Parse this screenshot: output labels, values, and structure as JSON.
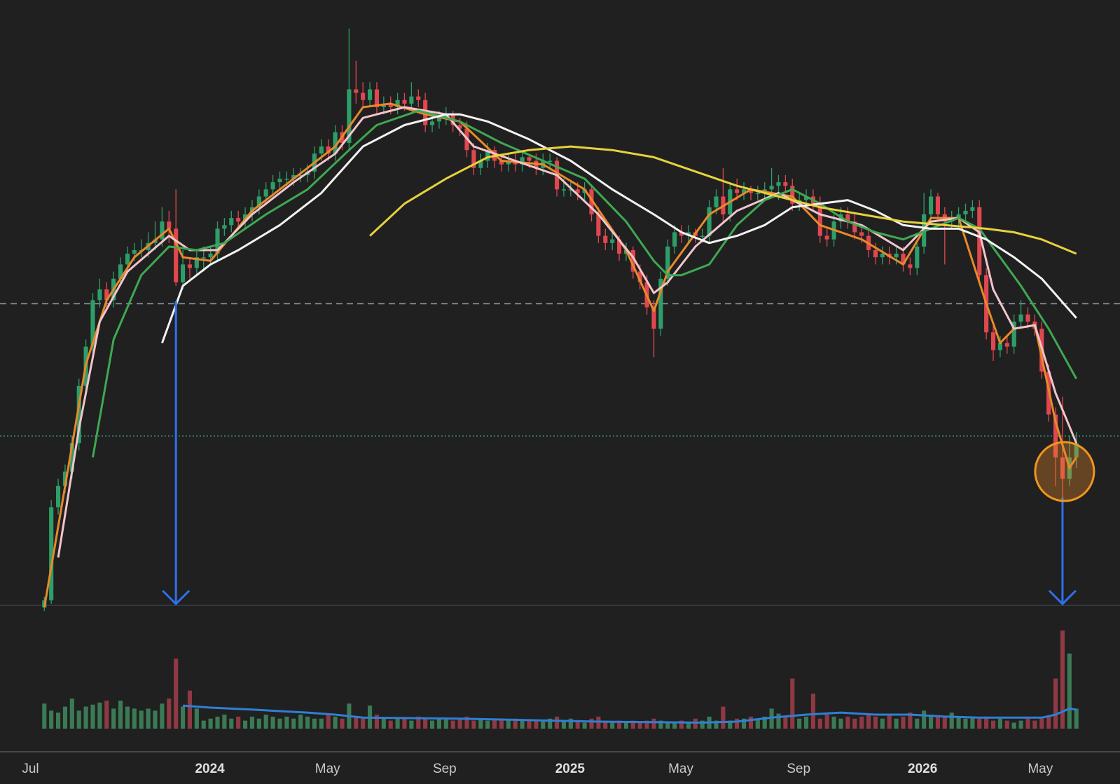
{
  "chart_data": {
    "type": "candlestick",
    "xlim": [
      -6.4,
      155.3
    ],
    "ylim": [
      10,
      180
    ],
    "vlim": [
      0,
      100
    ],
    "xticks": [
      {
        "value": -2,
        "label": "Jul"
      },
      {
        "value": 23.9,
        "label": "2024",
        "bold": true
      },
      {
        "value": 40.9,
        "label": "May"
      },
      {
        "value": 57.8,
        "label": "Sep"
      },
      {
        "value": 75.9,
        "label": "2025",
        "bold": true
      },
      {
        "value": 91.9,
        "label": "May"
      },
      {
        "value": 108.9,
        "label": "Sep"
      },
      {
        "value": 126.8,
        "label": "2026",
        "bold": true
      },
      {
        "value": 143.8,
        "label": "May"
      }
    ],
    "up_color": "#2e9e68",
    "down_color": "#e0474f",
    "vol_up_color": "#3b7a55",
    "vol_down_color": "#8e3943",
    "candles": [
      [
        10,
        13,
        9,
        12
      ],
      [
        12,
        40,
        11,
        38
      ],
      [
        38,
        46,
        36,
        44
      ],
      [
        44,
        50,
        42,
        48
      ],
      [
        48,
        58,
        46,
        56
      ],
      [
        56,
        74,
        54,
        72
      ],
      [
        72,
        85,
        70,
        83
      ],
      [
        83,
        98,
        81,
        96
      ],
      [
        96,
        102,
        94,
        99
      ],
      [
        99,
        101,
        94,
        96
      ],
      [
        96,
        104,
        94,
        102
      ],
      [
        102,
        108,
        100,
        106
      ],
      [
        106,
        111,
        104,
        109
      ],
      [
        109,
        112,
        107,
        110
      ],
      [
        110,
        113,
        108,
        110
      ],
      [
        110,
        115,
        108,
        112
      ],
      [
        112,
        118,
        110,
        113
      ],
      [
        113,
        122,
        111,
        118
      ],
      [
        118,
        121,
        112,
        116
      ],
      [
        116,
        127,
        100,
        101
      ],
      [
        101,
        110,
        99,
        106
      ],
      [
        106,
        108,
        102,
        105
      ],
      [
        105,
        110,
        103,
        108
      ],
      [
        108,
        111,
        104,
        108
      ],
      [
        108,
        111,
        106,
        109
      ],
      [
        109,
        118,
        107,
        116
      ],
      [
        116,
        119,
        114,
        117
      ],
      [
        117,
        121,
        115,
        119
      ],
      [
        119,
        121,
        116,
        118
      ],
      [
        118,
        122,
        116,
        120
      ],
      [
        120,
        124,
        118,
        122
      ],
      [
        122,
        127,
        120,
        125
      ],
      [
        125,
        129,
        123,
        127
      ],
      [
        127,
        131,
        125,
        129
      ],
      [
        129,
        132,
        127,
        130
      ],
      [
        130,
        132,
        128,
        130
      ],
      [
        130,
        133,
        128,
        131
      ],
      [
        131,
        133,
        129,
        131
      ],
      [
        131,
        134,
        129,
        132
      ],
      [
        132,
        139,
        130,
        137
      ],
      [
        137,
        141,
        135,
        139
      ],
      [
        139,
        141,
        135,
        137
      ],
      [
        137,
        145,
        135,
        143
      ],
      [
        143,
        145,
        138,
        140
      ],
      [
        140,
        172,
        138,
        155
      ],
      [
        155,
        163,
        151,
        154
      ],
      [
        154,
        157,
        150,
        152
      ],
      [
        152,
        157,
        150,
        155
      ],
      [
        155,
        157,
        148,
        150
      ],
      [
        150,
        153,
        148,
        151
      ],
      [
        151,
        153,
        148,
        150
      ],
      [
        150,
        154,
        148,
        152
      ],
      [
        152,
        154,
        149,
        151
      ],
      [
        151,
        157,
        149,
        153
      ],
      [
        153,
        155,
        150,
        152
      ],
      [
        152,
        154,
        143,
        145
      ],
      [
        145,
        148,
        143,
        146
      ],
      [
        146,
        149,
        144,
        147
      ],
      [
        147,
        150,
        145,
        148
      ],
      [
        148,
        149,
        143,
        145
      ],
      [
        145,
        147,
        142,
        144
      ],
      [
        144,
        146,
        136,
        138
      ],
      [
        138,
        140,
        131,
        133
      ],
      [
        133,
        137,
        131,
        135
      ],
      [
        135,
        140,
        133,
        138
      ],
      [
        138,
        139,
        133,
        135
      ],
      [
        135,
        137,
        132,
        134
      ],
      [
        134,
        137,
        132,
        135
      ],
      [
        135,
        137,
        132,
        134
      ],
      [
        134,
        138,
        132,
        136
      ],
      [
        136,
        137,
        133,
        135
      ],
      [
        135,
        137,
        131,
        133
      ],
      [
        133,
        137,
        131,
        135
      ],
      [
        135,
        137,
        133,
        135
      ],
      [
        135,
        136,
        125,
        127
      ],
      [
        127,
        130,
        125,
        127
      ],
      [
        127,
        129,
        125,
        127
      ],
      [
        127,
        129,
        124,
        126
      ],
      [
        126,
        129,
        124,
        127
      ],
      [
        127,
        128,
        118,
        120
      ],
      [
        120,
        122,
        112,
        114
      ],
      [
        114,
        116,
        110,
        112
      ],
      [
        112,
        115,
        110,
        113
      ],
      [
        113,
        114,
        107,
        109
      ],
      [
        109,
        112,
        107,
        110
      ],
      [
        110,
        111,
        102,
        104
      ],
      [
        104,
        106,
        99,
        101
      ],
      [
        101,
        103,
        92,
        94
      ],
      [
        94,
        96,
        80,
        88
      ],
      [
        88,
        104,
        86,
        102
      ],
      [
        102,
        113,
        100,
        111
      ],
      [
        111,
        117,
        109,
        115
      ],
      [
        115,
        117,
        112,
        114
      ],
      [
        114,
        117,
        112,
        115
      ],
      [
        115,
        116,
        112,
        114
      ],
      [
        114,
        116,
        112,
        114
      ],
      [
        114,
        124,
        112,
        122
      ],
      [
        122,
        127,
        120,
        125
      ],
      [
        125,
        133,
        118,
        120
      ],
      [
        120,
        129,
        118,
        127
      ],
      [
        127,
        130,
        124,
        126
      ],
      [
        126,
        129,
        124,
        127
      ],
      [
        127,
        128,
        124,
        126
      ],
      [
        126,
        128,
        124,
        126
      ],
      [
        126,
        129,
        124,
        127
      ],
      [
        127,
        133,
        125,
        128
      ],
      [
        128,
        131,
        124,
        129
      ],
      [
        129,
        131,
        126,
        128
      ],
      [
        128,
        130,
        121,
        123
      ],
      [
        123,
        126,
        121,
        124
      ],
      [
        124,
        127,
        122,
        125
      ],
      [
        125,
        127,
        121,
        123
      ],
      [
        123,
        125,
        112,
        114
      ],
      [
        114,
        116,
        111,
        113
      ],
      [
        113,
        120,
        111,
        118
      ],
      [
        118,
        122,
        116,
        120
      ],
      [
        120,
        122,
        116,
        118
      ],
      [
        118,
        120,
        113,
        115
      ],
      [
        115,
        117,
        112,
        114
      ],
      [
        114,
        116,
        108,
        110
      ],
      [
        110,
        112,
        106,
        108
      ],
      [
        108,
        111,
        106,
        109
      ],
      [
        109,
        111,
        106,
        108
      ],
      [
        108,
        111,
        106,
        109
      ],
      [
        109,
        111,
        104,
        106
      ],
      [
        106,
        108,
        103,
        105
      ],
      [
        105,
        113,
        103,
        111
      ],
      [
        111,
        126,
        109,
        120
      ],
      [
        120,
        127,
        118,
        125
      ],
      [
        125,
        126,
        118,
        120
      ],
      [
        120,
        122,
        106,
        118
      ],
      [
        118,
        121,
        116,
        119
      ],
      [
        119,
        122,
        117,
        120
      ],
      [
        120,
        123,
        118,
        121
      ],
      [
        121,
        124,
        119,
        122
      ],
      [
        122,
        124,
        101,
        103
      ],
      [
        103,
        105,
        85,
        87
      ],
      [
        87,
        89,
        79,
        82
      ],
      [
        82,
        86,
        80,
        84
      ],
      [
        84,
        86,
        81,
        83
      ],
      [
        83,
        92,
        81,
        90
      ],
      [
        90,
        96,
        88,
        92
      ],
      [
        92,
        94,
        88,
        90
      ],
      [
        90,
        92,
        86,
        88
      ],
      [
        88,
        90,
        74,
        76
      ],
      [
        76,
        78,
        62,
        64
      ],
      [
        64,
        66,
        44,
        52
      ],
      [
        52,
        69,
        40,
        46
      ],
      [
        46,
        58,
        44,
        52
      ],
      [
        52,
        59,
        49,
        56
      ]
    ],
    "volumes": [
      25,
      18,
      16,
      22,
      30,
      18,
      22,
      24,
      26,
      28,
      20,
      28,
      22,
      20,
      18,
      20,
      18,
      25,
      30,
      70,
      22,
      38,
      20,
      8,
      10,
      12,
      14,
      10,
      12,
      8,
      12,
      10,
      14,
      12,
      10,
      12,
      10,
      14,
      12,
      10,
      10,
      14,
      12,
      10,
      25,
      12,
      10,
      23,
      14,
      10,
      8,
      10,
      10,
      8,
      12,
      10,
      8,
      10,
      9,
      8,
      10,
      12,
      8,
      10,
      8,
      10,
      8,
      9,
      10,
      8,
      8,
      9,
      8,
      10,
      12,
      8,
      10,
      8,
      6,
      10,
      12,
      8,
      6,
      8,
      6,
      8,
      6,
      8,
      10,
      8,
      6,
      6,
      8,
      6,
      10,
      8,
      12,
      8,
      22,
      8,
      10,
      10,
      12,
      10,
      12,
      20,
      15,
      12,
      50,
      10,
      12,
      35,
      10,
      14,
      12,
      10,
      12,
      10,
      12,
      14,
      12,
      10,
      14,
      10,
      12,
      16,
      10,
      18,
      14,
      12,
      12,
      16,
      12,
      10,
      12,
      10,
      12,
      8,
      10,
      8,
      6,
      8,
      10,
      8,
      10,
      12,
      50,
      98,
      75,
      20
    ],
    "ma_lines": [
      {
        "color": "#e8892a",
        "x": [
          0,
          3,
          6,
          9,
          13,
          18,
          20,
          24,
          30,
          36,
          42,
          46,
          50,
          55,
          60,
          66,
          72,
          78,
          84,
          88,
          90,
          96,
          102,
          108,
          112,
          118,
          124,
          128,
          132,
          136,
          138,
          140,
          143,
          146,
          148,
          149
        ],
        "values": [
          10,
          44,
          78,
          96,
          108,
          116,
          108,
          107,
          121,
          130,
          139,
          150,
          151,
          148,
          146,
          135,
          134,
          127,
          110,
          93,
          104,
          120,
          127,
          125,
          117,
          113,
          106,
          119,
          119,
          95,
          84,
          88,
          89,
          62,
          49,
          52
        ]
      },
      {
        "color": "#f2c4cc",
        "x": [
          2,
          5,
          8,
          12,
          18,
          21,
          25,
          30,
          36,
          42,
          46,
          52,
          58,
          62,
          68,
          74,
          80,
          85,
          88,
          90,
          94,
          100,
          106,
          112,
          118,
          124,
          128,
          132,
          135,
          137,
          140,
          143,
          146,
          149
        ],
        "values": [
          24,
          60,
          90,
          104,
          114,
          110,
          110,
          120,
          129,
          137,
          147,
          150,
          148,
          139,
          135,
          131,
          120,
          108,
          98,
          101,
          111,
          121,
          126,
          120,
          117,
          110,
          118,
          119,
          115,
          99,
          88,
          89,
          70,
          56
        ]
      },
      {
        "color": "#3fa852",
        "x": [
          7,
          10,
          14,
          18,
          22,
          26,
          32,
          38,
          44,
          48,
          54,
          60,
          66,
          72,
          78,
          84,
          88,
          90,
          92,
          96,
          100,
          104,
          108,
          112,
          116,
          120,
          124,
          128,
          132,
          135,
          138,
          141,
          145,
          149
        ],
        "values": [
          52,
          85,
          103,
          111,
          110,
          112,
          120,
          127,
          138,
          145,
          149,
          146,
          140,
          135,
          130,
          118,
          107,
          103,
          103,
          106,
          117,
          124,
          127,
          123,
          118,
          115,
          113,
          116,
          119,
          116,
          108,
          100,
          88,
          74
        ]
      },
      {
        "color": "#f2f2f2",
        "x": [
          17,
          20,
          24,
          28,
          34,
          40,
          46,
          52,
          58,
          60,
          64,
          70,
          76,
          82,
          88,
          92,
          96,
          100,
          104,
          108,
          112,
          116,
          120,
          124,
          128,
          132,
          136,
          140,
          144,
          149
        ],
        "values": [
          84,
          100,
          106,
          110,
          117,
          126,
          139,
          145,
          148,
          148,
          146,
          141,
          135,
          127,
          120,
          115,
          112,
          114,
          117,
          122,
          123,
          124,
          121,
          117,
          116,
          116,
          113,
          108,
          102,
          91
        ]
      },
      {
        "color": "#e6d23c",
        "x": [
          47,
          52,
          58,
          64,
          70,
          76,
          82,
          88,
          94,
          100,
          106,
          112,
          118,
          124,
          130,
          136,
          140,
          144,
          149
        ],
        "values": [
          114,
          123,
          130,
          136,
          138,
          139,
          138,
          136,
          132,
          128,
          125,
          122,
          120,
          118,
          117,
          116,
          115,
          113,
          109
        ]
      }
    ],
    "volume_ma": {
      "color": "#2f7fd6",
      "x": [
        20,
        24,
        30,
        38,
        42,
        46,
        60,
        80,
        95,
        100,
        105,
        110,
        115,
        120,
        125,
        130,
        135,
        140,
        144,
        146,
        148,
        149
      ],
      "values": [
        23,
        21,
        19,
        16,
        14,
        11,
        10,
        7,
        6,
        7,
        11,
        14,
        16,
        14,
        14,
        12,
        11,
        11,
        11,
        14,
        20,
        19
      ]
    },
    "ref_lines": [
      {
        "value": 95,
        "color": "#8a96a3",
        "dash": "9 6"
      },
      {
        "value": 58,
        "color": "#2fa58a",
        "dash": "2 3"
      }
    ]
  }
}
